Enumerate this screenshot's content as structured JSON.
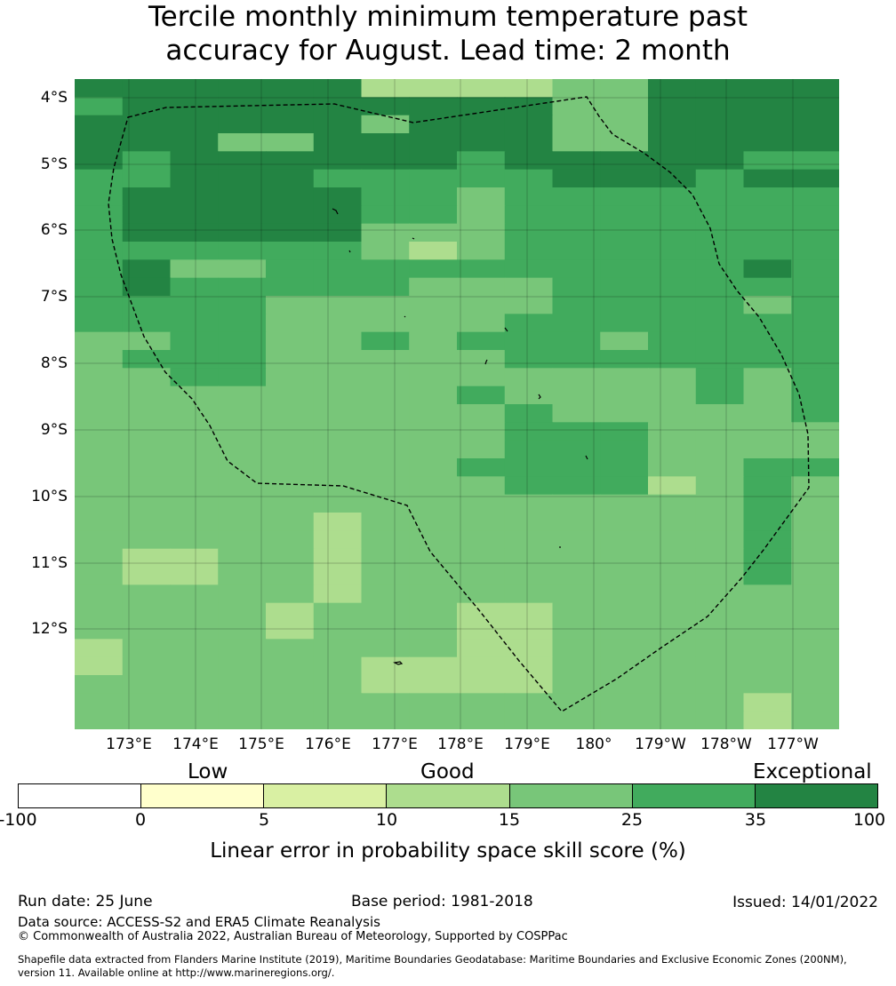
{
  "title": {
    "line1": "Tercile monthly minimum temperature past",
    "line2": "accuracy for August. Lead time: 2 month"
  },
  "map": {
    "lat_labels": [
      "4°S",
      "5°S",
      "6°S",
      "7°S",
      "8°S",
      "9°S",
      "10°S",
      "11°S",
      "12°S"
    ],
    "lon_labels": [
      "173°E",
      "174°E",
      "175°E",
      "176°E",
      "177°E",
      "178°E",
      "179°E",
      "180°",
      "179°W",
      "178°W",
      "177°W"
    ],
    "grid_rows": [
      "6666663333446666",
      "5666666666446666",
      "6666664666446666",
      "6664466666446666",
      "6566666656666655",
      "5566655555666566",
      "5666665545555555",
      "5666665545555555",
      "5666664445555555",
      "5555554345555555",
      "5644555555555565",
      "5655555444555555",
      "5555444444555545",
      "5555444445555555",
      "4455445455545555",
      "4555444445555555",
      "4455444444444545",
      "4444444454444545",
      "4444444445444445",
      "4444444445554444",
      "4444444445554444",
      "4444444455554455",
      "4444444445553454",
      "4444444444444454",
      "4444434444444454",
      "4444434444444454",
      "4334434444444454",
      "4334434444444454",
      "4444434444444444",
      "4444344433444444",
      "4444344433444444",
      "3444444433444444",
      "3444443333444444",
      "4444443333444444",
      "4444444444444434",
      "4444444444444434"
    ]
  },
  "colorbar": {
    "colors": [
      "#ffffff",
      "#ffffcc",
      "#d9f0a3",
      "#addd8e",
      "#78c679",
      "#41ab5d",
      "#238443"
    ],
    "ticks": [
      "-100",
      "0",
      "5",
      "10",
      "15",
      "25",
      "35",
      "100"
    ],
    "categories": {
      "low": "Low",
      "good": "Good",
      "exceptional": "Exceptional"
    },
    "label": "Linear error in probability space skill score (%)"
  },
  "footer": {
    "run_date": "Run date: 25 June",
    "base_period": "Base period: 1981-2018",
    "issued": "Issued: 14/01/2022",
    "data_source": "Data source: ACCESS-S2 and ERA5 Climate Reanalysis",
    "copyright": "© Commonwealth of Australia 2022, Australian Bureau of Meteorology, Supported by COSPPac",
    "shapefile_line1": "Shapefile data extracted from Flanders Marine Institute (2019), Maritime Boundaries Geodatabase: Maritime Boundaries and Exclusive Economic Zones (200NM),",
    "shapefile_line2": "version 11. Available online at http://www.marineregions.org/."
  }
}
